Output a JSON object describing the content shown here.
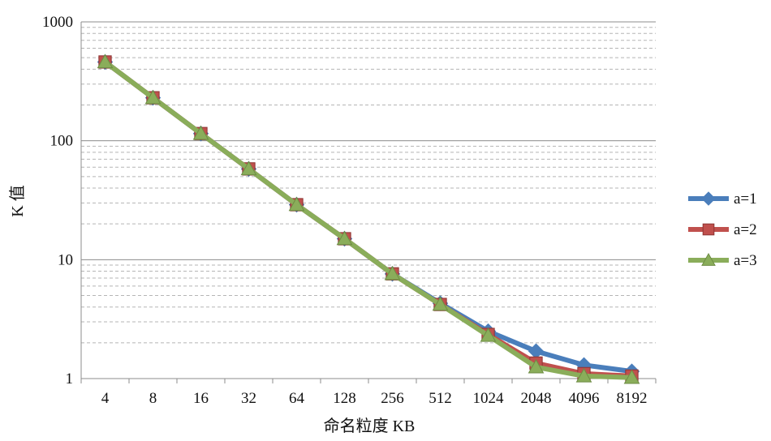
{
  "chart_data": {
    "type": "line",
    "categories": [
      "4",
      "8",
      "16",
      "32",
      "64",
      "128",
      "256",
      "512",
      "1024",
      "2048",
      "4096",
      "8192"
    ],
    "series": [
      {
        "name": "a=1",
        "color": "#4a7ebb",
        "marker": "diamond",
        "values": [
          460,
          230,
          115,
          58,
          29,
          15,
          7.6,
          4.3,
          2.5,
          1.7,
          1.3,
          1.15
        ]
      },
      {
        "name": "a=2",
        "color": "#c0504d",
        "marker": "square",
        "values": [
          460,
          230,
          115,
          58,
          29,
          15,
          7.6,
          4.2,
          2.35,
          1.35,
          1.1,
          1.05
        ]
      },
      {
        "name": "a=3",
        "color": "#8aad5a",
        "marker": "triangle",
        "values": [
          460,
          230,
          115,
          58,
          29,
          15,
          7.6,
          4.2,
          2.3,
          1.25,
          1.05,
          1.02
        ]
      }
    ],
    "xlabel": "命名粒度 KB",
    "ylabel": "K 值",
    "yscale": "log",
    "ylim": [
      1,
      1000
    ],
    "yticks": [
      "1",
      "10",
      "100",
      "1000"
    ],
    "grid": true,
    "legend": "right"
  }
}
